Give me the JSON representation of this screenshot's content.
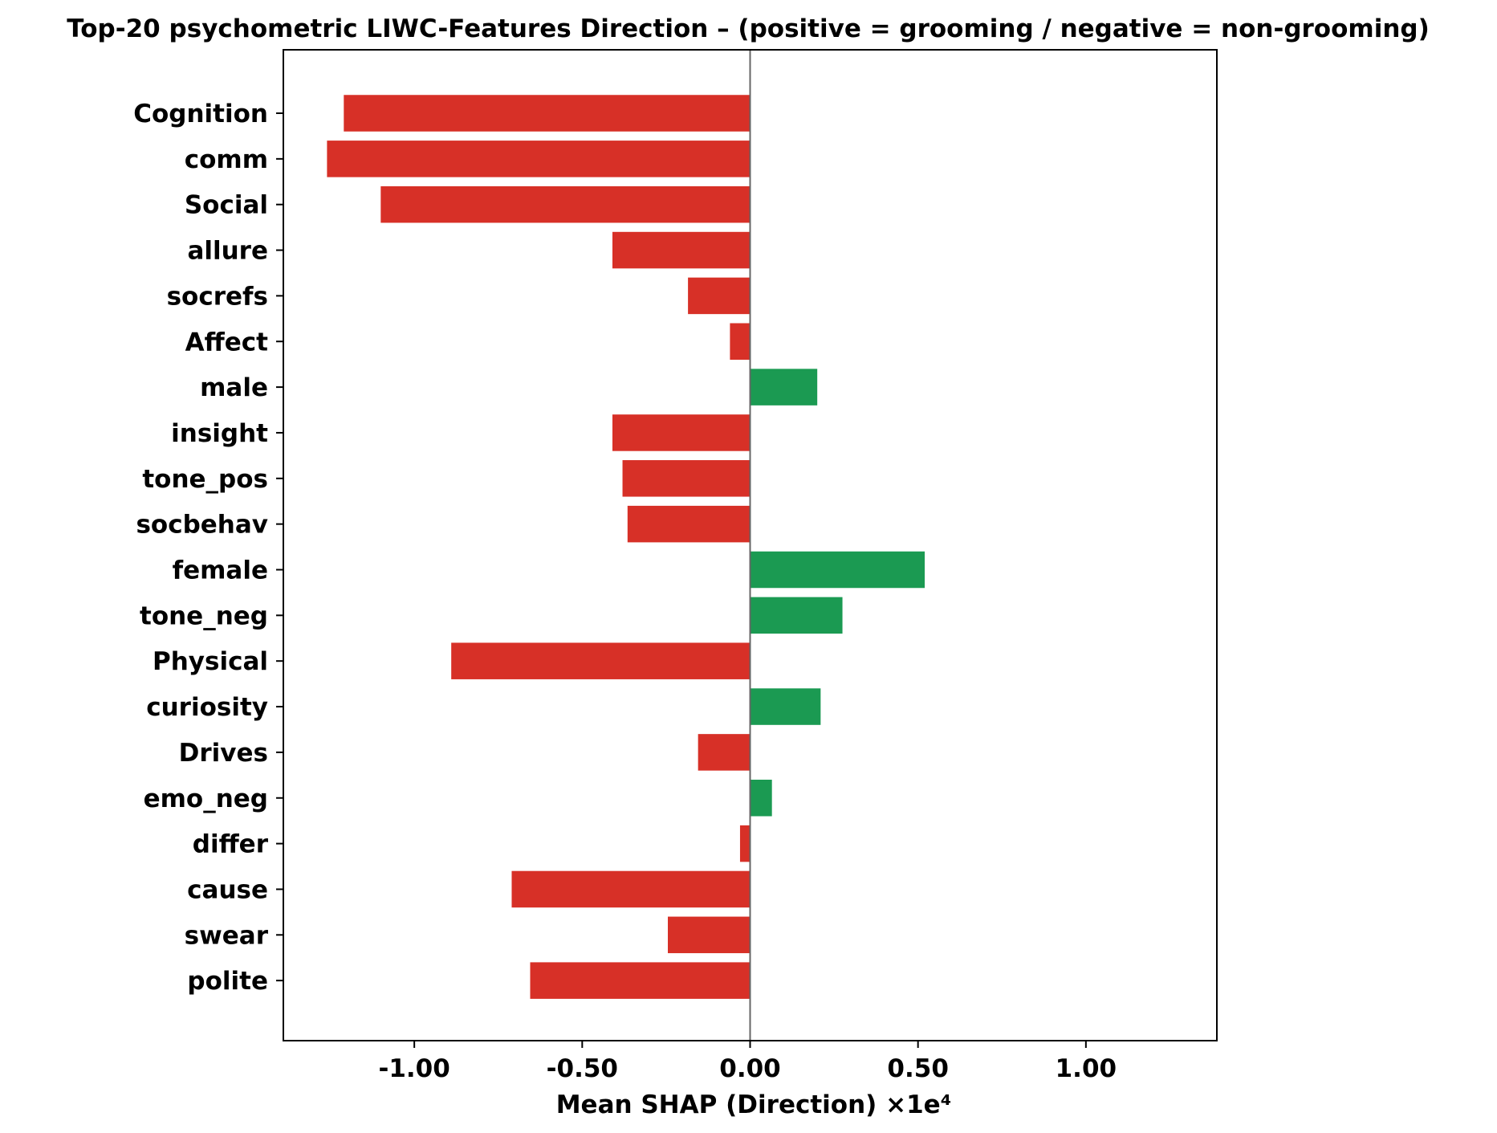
{
  "chart_data": {
    "type": "bar",
    "orientation": "horizontal",
    "title": "Top-20 psychometric LIWC-Features Direction – (positive = grooming / negative = non-grooming)",
    "xlabel": "Mean SHAP (Direction) ×1e⁴",
    "ylabel": "",
    "xlim": [
      -1.39,
      1.39
    ],
    "xticks": [
      -1.0,
      -0.5,
      0.0,
      0.5,
      1.0
    ],
    "xtick_labels": [
      "-1.00",
      "-0.50",
      "0.00",
      "0.50",
      "1.00"
    ],
    "zero_line": 0.0,
    "grid": false,
    "categories": [
      "Cognition",
      "comm",
      "Social",
      "allure",
      "socrefs",
      "Affect",
      "male",
      "insight",
      "tone_pos",
      "socbehav",
      "female",
      "tone_neg",
      "Physical",
      "curiosity",
      "Drives",
      "emo_neg",
      "differ",
      "cause",
      "swear",
      "polite"
    ],
    "values": [
      -1.21,
      -1.26,
      -1.1,
      -0.41,
      -0.185,
      -0.06,
      0.2,
      -0.41,
      -0.38,
      -0.365,
      0.52,
      0.275,
      -0.89,
      0.21,
      -0.155,
      0.065,
      -0.03,
      -0.71,
      -0.245,
      -0.655
    ],
    "colors": {
      "positive": "#1b9a52",
      "negative": "#d73027",
      "zero_line": "#666666",
      "axes": "#000000"
    }
  }
}
